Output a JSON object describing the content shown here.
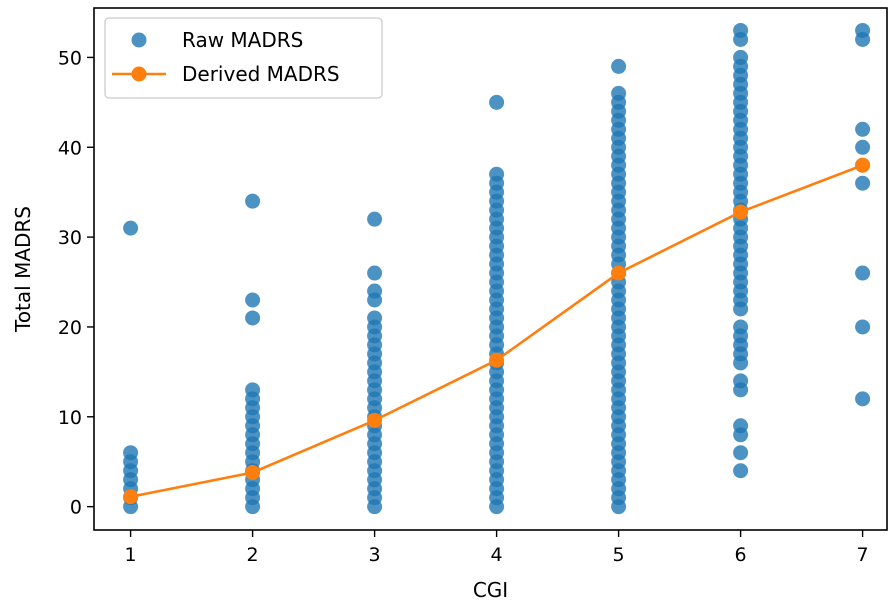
{
  "chart_data": {
    "type": "scatter",
    "xlabel": "CGI",
    "ylabel": "Total MADRS",
    "xlim": [
      0.7,
      7.2
    ],
    "ylim": [
      -2.6,
      55.5
    ],
    "xticks": [
      1,
      2,
      3,
      4,
      5,
      6,
      7
    ],
    "yticks": [
      0,
      10,
      20,
      30,
      40,
      50
    ],
    "grid": false,
    "legend_position": "top-left",
    "series": [
      {
        "name": "Raw MADRS",
        "kind": "scatter",
        "color": "#1f77b4",
        "points": [
          [
            1,
            0
          ],
          [
            1,
            1
          ],
          [
            1,
            2
          ],
          [
            1,
            3
          ],
          [
            1,
            4
          ],
          [
            1,
            5
          ],
          [
            1,
            6
          ],
          [
            1,
            31
          ],
          [
            2,
            0
          ],
          [
            2,
            1
          ],
          [
            2,
            2
          ],
          [
            2,
            3
          ],
          [
            2,
            4
          ],
          [
            2,
            5
          ],
          [
            2,
            6
          ],
          [
            2,
            7
          ],
          [
            2,
            8
          ],
          [
            2,
            9
          ],
          [
            2,
            10
          ],
          [
            2,
            11
          ],
          [
            2,
            12
          ],
          [
            2,
            13
          ],
          [
            2,
            21
          ],
          [
            2,
            23
          ],
          [
            2,
            34
          ],
          [
            3,
            0
          ],
          [
            3,
            1
          ],
          [
            3,
            2
          ],
          [
            3,
            3
          ],
          [
            3,
            4
          ],
          [
            3,
            5
          ],
          [
            3,
            6
          ],
          [
            3,
            7
          ],
          [
            3,
            8
          ],
          [
            3,
            9
          ],
          [
            3,
            10
          ],
          [
            3,
            11
          ],
          [
            3,
            12
          ],
          [
            3,
            13
          ],
          [
            3,
            14
          ],
          [
            3,
            15
          ],
          [
            3,
            16
          ],
          [
            3,
            17
          ],
          [
            3,
            18
          ],
          [
            3,
            19
          ],
          [
            3,
            20
          ],
          [
            3,
            21
          ],
          [
            3,
            23
          ],
          [
            3,
            24
          ],
          [
            3,
            26
          ],
          [
            3,
            32
          ],
          [
            4,
            0
          ],
          [
            4,
            1
          ],
          [
            4,
            2
          ],
          [
            4,
            3
          ],
          [
            4,
            4
          ],
          [
            4,
            5
          ],
          [
            4,
            6
          ],
          [
            4,
            7
          ],
          [
            4,
            8
          ],
          [
            4,
            9
          ],
          [
            4,
            10
          ],
          [
            4,
            11
          ],
          [
            4,
            12
          ],
          [
            4,
            13
          ],
          [
            4,
            14
          ],
          [
            4,
            15
          ],
          [
            4,
            16
          ],
          [
            4,
            17
          ],
          [
            4,
            18
          ],
          [
            4,
            19
          ],
          [
            4,
            20
          ],
          [
            4,
            21
          ],
          [
            4,
            22
          ],
          [
            4,
            23
          ],
          [
            4,
            24
          ],
          [
            4,
            25
          ],
          [
            4,
            26
          ],
          [
            4,
            27
          ],
          [
            4,
            28
          ],
          [
            4,
            29
          ],
          [
            4,
            30
          ],
          [
            4,
            31
          ],
          [
            4,
            32
          ],
          [
            4,
            33
          ],
          [
            4,
            34
          ],
          [
            4,
            35
          ],
          [
            4,
            36
          ],
          [
            4,
            37
          ],
          [
            4,
            45
          ],
          [
            5,
            0
          ],
          [
            5,
            1
          ],
          [
            5,
            2
          ],
          [
            5,
            3
          ],
          [
            5,
            4
          ],
          [
            5,
            5
          ],
          [
            5,
            6
          ],
          [
            5,
            7
          ],
          [
            5,
            8
          ],
          [
            5,
            9
          ],
          [
            5,
            10
          ],
          [
            5,
            11
          ],
          [
            5,
            12
          ],
          [
            5,
            13
          ],
          [
            5,
            14
          ],
          [
            5,
            15
          ],
          [
            5,
            16
          ],
          [
            5,
            17
          ],
          [
            5,
            18
          ],
          [
            5,
            19
          ],
          [
            5,
            20
          ],
          [
            5,
            21
          ],
          [
            5,
            22
          ],
          [
            5,
            23
          ],
          [
            5,
            24
          ],
          [
            5,
            25
          ],
          [
            5,
            26
          ],
          [
            5,
            27
          ],
          [
            5,
            28
          ],
          [
            5,
            29
          ],
          [
            5,
            30
          ],
          [
            5,
            31
          ],
          [
            5,
            32
          ],
          [
            5,
            33
          ],
          [
            5,
            34
          ],
          [
            5,
            35
          ],
          [
            5,
            36
          ],
          [
            5,
            37
          ],
          [
            5,
            38
          ],
          [
            5,
            39
          ],
          [
            5,
            40
          ],
          [
            5,
            41
          ],
          [
            5,
            42
          ],
          [
            5,
            43
          ],
          [
            5,
            44
          ],
          [
            5,
            45
          ],
          [
            5,
            46
          ],
          [
            5,
            49
          ],
          [
            6,
            4
          ],
          [
            6,
            6
          ],
          [
            6,
            8
          ],
          [
            6,
            9
          ],
          [
            6,
            13
          ],
          [
            6,
            14
          ],
          [
            6,
            16
          ],
          [
            6,
            17
          ],
          [
            6,
            18
          ],
          [
            6,
            19
          ],
          [
            6,
            20
          ],
          [
            6,
            22
          ],
          [
            6,
            23
          ],
          [
            6,
            24
          ],
          [
            6,
            25
          ],
          [
            6,
            26
          ],
          [
            6,
            27
          ],
          [
            6,
            28
          ],
          [
            6,
            29
          ],
          [
            6,
            30
          ],
          [
            6,
            31
          ],
          [
            6,
            32
          ],
          [
            6,
            33
          ],
          [
            6,
            34
          ],
          [
            6,
            35
          ],
          [
            6,
            36
          ],
          [
            6,
            37
          ],
          [
            6,
            38
          ],
          [
            6,
            39
          ],
          [
            6,
            40
          ],
          [
            6,
            41
          ],
          [
            6,
            42
          ],
          [
            6,
            43
          ],
          [
            6,
            44
          ],
          [
            6,
            45
          ],
          [
            6,
            46
          ],
          [
            6,
            47
          ],
          [
            6,
            48
          ],
          [
            6,
            49
          ],
          [
            6,
            50
          ],
          [
            6,
            52
          ],
          [
            6,
            53
          ],
          [
            7,
            12
          ],
          [
            7,
            20
          ],
          [
            7,
            26
          ],
          [
            7,
            36
          ],
          [
            7,
            38
          ],
          [
            7,
            40
          ],
          [
            7,
            42
          ],
          [
            7,
            52
          ],
          [
            7,
            53
          ]
        ]
      },
      {
        "name": "Derived MADRS",
        "kind": "line",
        "color": "#ff7f0e",
        "x": [
          1,
          2,
          3,
          4,
          5,
          6,
          7
        ],
        "y": [
          1.1,
          3.8,
          9.6,
          16.3,
          26.0,
          32.8,
          38.0
        ]
      }
    ]
  }
}
